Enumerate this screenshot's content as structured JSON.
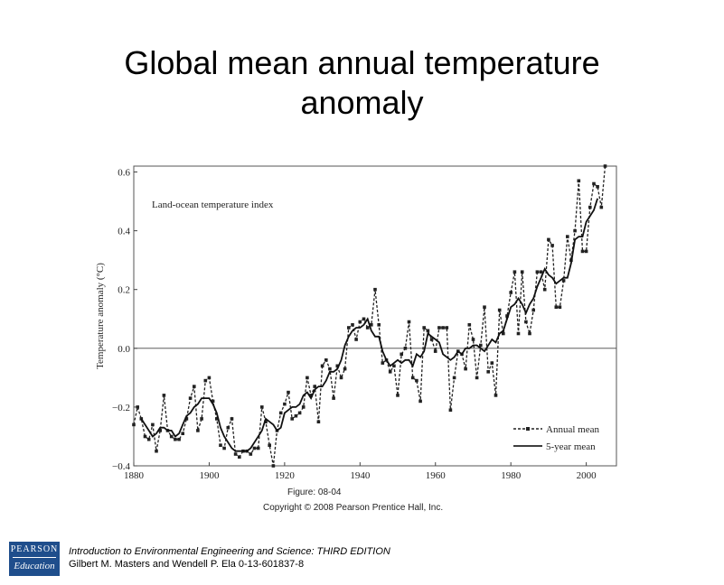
{
  "slide": {
    "title_line1": "Global mean annual temperature",
    "title_line2": "anomaly",
    "figure_caption": "Figure: 08-04",
    "copyright": "Copyright © 2008 Pearson Prentice Hall, Inc.",
    "footer_line1": "Introduction to Environmental Engineering and Science: THIRD EDITION",
    "footer_line2": "Gilbert M. Masters and Wendell P. Ela  0-13-601837-8",
    "logo_line1": "PEARSON",
    "logo_line2": "Education"
  },
  "chart_data": {
    "type": "line",
    "title": "Land-ocean temperature index",
    "xlabel": "",
    "ylabel": "Temperature anomaly (°C)",
    "xlim": [
      1880,
      2008
    ],
    "ylim": [
      -0.4,
      0.62
    ],
    "x_ticks": [
      1880,
      1900,
      1920,
      1940,
      1960,
      1980,
      2000
    ],
    "y_ticks": [
      -0.4,
      -0.2,
      0.0,
      0.2,
      0.4,
      0.6
    ],
    "x_tick_labels": [
      "1880",
      "1900",
      "1920",
      "1940",
      "1960",
      "1980",
      "2000"
    ],
    "y_tick_labels": [
      "−0.4",
      "−0.2",
      "0.0",
      "0.2",
      "0.4",
      "0.6"
    ],
    "zero_line": true,
    "legend_position": "bottom-right",
    "series": [
      {
        "name": "Annual mean",
        "style": "dashed-square-markers",
        "x": [
          1880,
          1881,
          1882,
          1883,
          1884,
          1885,
          1886,
          1887,
          1888,
          1889,
          1890,
          1891,
          1892,
          1893,
          1894,
          1895,
          1896,
          1897,
          1898,
          1899,
          1900,
          1901,
          1902,
          1903,
          1904,
          1905,
          1906,
          1907,
          1908,
          1909,
          1910,
          1911,
          1912,
          1913,
          1914,
          1915,
          1916,
          1917,
          1918,
          1919,
          1920,
          1921,
          1922,
          1923,
          1924,
          1925,
          1926,
          1927,
          1928,
          1929,
          1930,
          1931,
          1932,
          1933,
          1934,
          1935,
          1936,
          1937,
          1938,
          1939,
          1940,
          1941,
          1942,
          1943,
          1944,
          1945,
          1946,
          1947,
          1948,
          1949,
          1950,
          1951,
          1952,
          1953,
          1954,
          1955,
          1956,
          1957,
          1958,
          1959,
          1960,
          1961,
          1962,
          1963,
          1964,
          1965,
          1966,
          1967,
          1968,
          1969,
          1970,
          1971,
          1972,
          1973,
          1974,
          1975,
          1976,
          1977,
          1978,
          1979,
          1980,
          1981,
          1982,
          1983,
          1984,
          1985,
          1986,
          1987,
          1988,
          1989,
          1990,
          1991,
          1992,
          1993,
          1994,
          1995,
          1996,
          1997,
          1998,
          1999,
          2000,
          2001,
          2002,
          2003,
          2004,
          2005
        ],
        "values": [
          -0.26,
          -0.2,
          -0.24,
          -0.3,
          -0.31,
          -0.26,
          -0.35,
          -0.28,
          -0.16,
          -0.28,
          -0.3,
          -0.31,
          -0.31,
          -0.29,
          -0.24,
          -0.17,
          -0.13,
          -0.28,
          -0.24,
          -0.11,
          -0.1,
          -0.18,
          -0.24,
          -0.33,
          -0.34,
          -0.27,
          -0.24,
          -0.36,
          -0.37,
          -0.35,
          -0.35,
          -0.36,
          -0.34,
          -0.34,
          -0.2,
          -0.25,
          -0.33,
          -0.4,
          -0.28,
          -0.22,
          -0.19,
          -0.15,
          -0.24,
          -0.23,
          -0.22,
          -0.2,
          -0.1,
          -0.16,
          -0.13,
          -0.25,
          -0.06,
          -0.04,
          -0.07,
          -0.17,
          -0.06,
          -0.1,
          -0.07,
          0.07,
          0.08,
          0.03,
          0.09,
          0.1,
          0.07,
          0.08,
          0.2,
          0.08,
          -0.05,
          -0.04,
          -0.08,
          -0.06,
          -0.16,
          -0.02,
          0.0,
          0.09,
          -0.1,
          -0.11,
          -0.18,
          0.07,
          0.06,
          0.03,
          -0.01,
          0.07,
          0.07,
          0.07,
          -0.21,
          -0.1,
          -0.01,
          -0.02,
          -0.07,
          0.08,
          0.03,
          -0.1,
          0.01,
          0.14,
          -0.08,
          -0.05,
          -0.16,
          0.13,
          0.05,
          0.11,
          0.19,
          0.26,
          0.05,
          0.26,
          0.09,
          0.05,
          0.13,
          0.26,
          0.26,
          0.2,
          0.37,
          0.35,
          0.14,
          0.14,
          0.23,
          0.38,
          0.3,
          0.4,
          0.57,
          0.33,
          0.33,
          0.48,
          0.56,
          0.55,
          0.48,
          0.62
        ]
      },
      {
        "name": "5-year mean",
        "style": "solid",
        "x": [
          1882,
          1883,
          1884,
          1885,
          1886,
          1887,
          1888,
          1889,
          1890,
          1891,
          1892,
          1893,
          1894,
          1895,
          1896,
          1897,
          1898,
          1899,
          1900,
          1901,
          1902,
          1903,
          1904,
          1905,
          1906,
          1907,
          1908,
          1909,
          1910,
          1911,
          1912,
          1913,
          1914,
          1915,
          1916,
          1917,
          1918,
          1919,
          1920,
          1921,
          1922,
          1923,
          1924,
          1925,
          1926,
          1927,
          1928,
          1929,
          1930,
          1931,
          1932,
          1933,
          1934,
          1935,
          1936,
          1937,
          1938,
          1939,
          1940,
          1941,
          1942,
          1943,
          1944,
          1945,
          1946,
          1947,
          1948,
          1949,
          1950,
          1951,
          1952,
          1953,
          1954,
          1955,
          1956,
          1957,
          1958,
          1959,
          1960,
          1961,
          1962,
          1963,
          1964,
          1965,
          1966,
          1967,
          1968,
          1969,
          1970,
          1971,
          1972,
          1973,
          1974,
          1975,
          1976,
          1977,
          1978,
          1979,
          1980,
          1981,
          1982,
          1983,
          1984,
          1985,
          1986,
          1987,
          1988,
          1989,
          1990,
          1991,
          1992,
          1993,
          1994,
          1995,
          1996,
          1997,
          1998,
          1999,
          2000,
          2001,
          2002,
          2003
        ],
        "values": [
          -0.24,
          -0.26,
          -0.28,
          -0.3,
          -0.29,
          -0.27,
          -0.27,
          -0.28,
          -0.28,
          -0.3,
          -0.29,
          -0.26,
          -0.23,
          -0.22,
          -0.2,
          -0.19,
          -0.17,
          -0.17,
          -0.17,
          -0.19,
          -0.22,
          -0.27,
          -0.3,
          -0.32,
          -0.34,
          -0.35,
          -0.35,
          -0.35,
          -0.35,
          -0.34,
          -0.32,
          -0.3,
          -0.28,
          -0.24,
          -0.25,
          -0.26,
          -0.28,
          -0.27,
          -0.22,
          -0.21,
          -0.2,
          -0.2,
          -0.19,
          -0.16,
          -0.15,
          -0.17,
          -0.14,
          -0.13,
          -0.13,
          -0.11,
          -0.08,
          -0.08,
          -0.07,
          -0.04,
          0.01,
          0.04,
          0.06,
          0.07,
          0.07,
          0.08,
          0.1,
          0.06,
          0.04,
          0.04,
          -0.01,
          -0.04,
          -0.06,
          -0.05,
          -0.04,
          -0.05,
          -0.04,
          -0.04,
          -0.06,
          -0.02,
          -0.03,
          -0.01,
          0.05,
          0.04,
          0.03,
          0.02,
          -0.02,
          -0.03,
          -0.04,
          -0.03,
          -0.01,
          -0.02,
          -0.0,
          0.0,
          0.01,
          0.01,
          0.0,
          -0.01,
          0.01,
          0.03,
          0.02,
          0.05,
          0.06,
          0.1,
          0.14,
          0.15,
          0.17,
          0.15,
          0.12,
          0.15,
          0.17,
          0.21,
          0.24,
          0.27,
          0.25,
          0.24,
          0.22,
          0.23,
          0.24,
          0.24,
          0.29,
          0.37,
          0.38,
          0.38,
          0.43,
          0.45,
          0.47,
          0.51
        ]
      }
    ]
  }
}
